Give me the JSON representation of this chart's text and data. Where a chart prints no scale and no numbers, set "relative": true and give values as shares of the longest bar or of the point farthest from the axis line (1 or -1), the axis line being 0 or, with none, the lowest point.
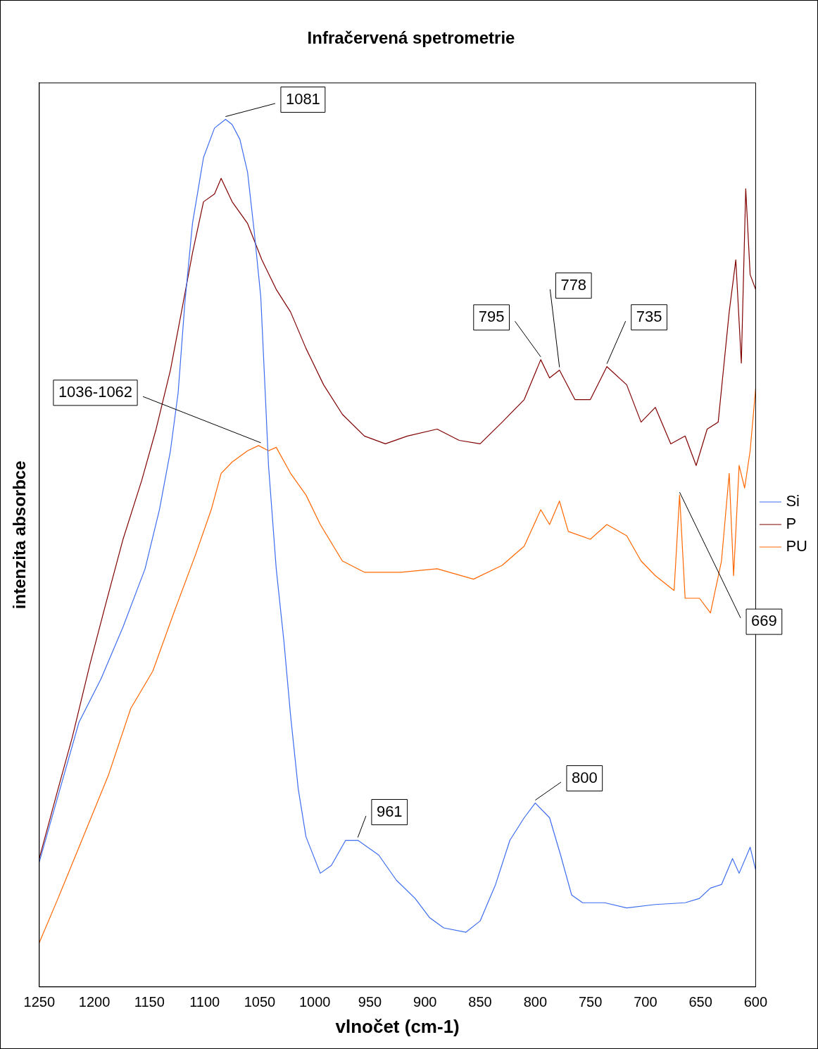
{
  "chart_data": {
    "type": "line",
    "title": "Infračervená spetrometrie",
    "xlabel": "vlnočet (cm-1)",
    "ylabel": "intenzita absorbce",
    "relative": true,
    "xlim": [
      1250,
      600
    ],
    "xticks": [
      1250,
      1200,
      1150,
      1100,
      1050,
      1000,
      950,
      900,
      850,
      800,
      750,
      700,
      650,
      600
    ],
    "grid": false,
    "legend": "right",
    "marker": "none",
    "line_style": "solid",
    "series": [
      {
        "name": "Si",
        "color": "#3d6cf0",
        "x": [
          1250,
          1233,
          1214,
          1194,
          1174,
          1154,
          1141,
          1131,
          1124,
          1118,
          1111,
          1101,
          1091,
          1081,
          1075,
          1068,
          1061,
          1055,
          1049,
          1045,
          1042,
          1035,
          1028,
          1022,
          1015,
          1008,
          995,
          985,
          972,
          961,
          942,
          926,
          909,
          896,
          883,
          863,
          850,
          836,
          823,
          810,
          800,
          787,
          777,
          767,
          757,
          737,
          717,
          691,
          664,
          651,
          641,
          631,
          621,
          615,
          605,
          600
        ],
        "values": [
          0.144,
          0.22,
          0.305,
          0.355,
          0.415,
          0.482,
          0.55,
          0.618,
          0.685,
          0.787,
          0.88,
          0.956,
          0.99,
          1.0,
          0.994,
          0.977,
          0.939,
          0.871,
          0.795,
          0.685,
          0.601,
          0.482,
          0.398,
          0.313,
          0.228,
          0.173,
          0.131,
          0.14,
          0.169,
          0.169,
          0.152,
          0.123,
          0.102,
          0.08,
          0.068,
          0.063,
          0.076,
          0.118,
          0.169,
          0.195,
          0.212,
          0.195,
          0.152,
          0.106,
          0.097,
          0.097,
          0.091,
          0.095,
          0.097,
          0.102,
          0.114,
          0.118,
          0.148,
          0.131,
          0.161,
          0.135
        ]
      },
      {
        "name": "P",
        "color": "#800000",
        "x": [
          1250,
          1233,
          1220,
          1204,
          1190,
          1174,
          1157,
          1144,
          1131,
          1121,
          1111,
          1101,
          1091,
          1085,
          1075,
          1061,
          1048,
          1035,
          1022,
          1008,
          992,
          975,
          955,
          936,
          916,
          889,
          869,
          850,
          830,
          810,
          795,
          787,
          778,
          764,
          750,
          735,
          717,
          704,
          691,
          677,
          664,
          654,
          644,
          634,
          624,
          618,
          613,
          609,
          605,
          600
        ],
        "values": [
          0.148,
          0.228,
          0.288,
          0.372,
          0.44,
          0.516,
          0.584,
          0.643,
          0.711,
          0.778,
          0.846,
          0.905,
          0.914,
          0.932,
          0.905,
          0.88,
          0.838,
          0.804,
          0.778,
          0.736,
          0.694,
          0.66,
          0.635,
          0.626,
          0.635,
          0.643,
          0.63,
          0.626,
          0.651,
          0.677,
          0.723,
          0.702,
          0.711,
          0.677,
          0.677,
          0.715,
          0.694,
          0.651,
          0.668,
          0.626,
          0.635,
          0.601,
          0.643,
          0.651,
          0.778,
          0.838,
          0.719,
          0.92,
          0.821,
          0.804
        ]
      },
      {
        "name": "PU",
        "color": "#ff6600",
        "x": [
          1250,
          1233,
          1214,
          1187,
          1167,
          1147,
          1128,
          1108,
          1094,
          1085,
          1075,
          1061,
          1051,
          1042,
          1035,
          1022,
          1008,
          995,
          975,
          955,
          922,
          889,
          856,
          830,
          810,
          795,
          787,
          778,
          770,
          750,
          735,
          717,
          704,
          691,
          674,
          669,
          664,
          651,
          641,
          631,
          624,
          620,
          615,
          610,
          605,
          600
        ],
        "values": [
          0.051,
          0.102,
          0.161,
          0.245,
          0.321,
          0.364,
          0.431,
          0.499,
          0.55,
          0.592,
          0.605,
          0.618,
          0.624,
          0.618,
          0.622,
          0.592,
          0.567,
          0.533,
          0.491,
          0.478,
          0.478,
          0.482,
          0.47,
          0.486,
          0.508,
          0.55,
          0.533,
          0.56,
          0.525,
          0.516,
          0.533,
          0.52,
          0.491,
          0.474,
          0.457,
          0.567,
          0.448,
          0.448,
          0.431,
          0.491,
          0.592,
          0.474,
          0.601,
          0.575,
          0.618,
          0.69
        ]
      }
    ],
    "annotations": [
      {
        "text": "1081",
        "x": 1081,
        "y": 1.0
      },
      {
        "text": "1036-1062",
        "x": 1049,
        "y": 0.624
      },
      {
        "text": "795",
        "x": 795,
        "y": 0.723
      },
      {
        "text": "778",
        "x": 778,
        "y": 0.711
      },
      {
        "text": "735",
        "x": 735,
        "y": 0.715
      },
      {
        "text": "669",
        "x": 669,
        "y": 0.567
      },
      {
        "text": "961",
        "x": 961,
        "y": 0.169
      },
      {
        "text": "800",
        "x": 800,
        "y": 0.212
      }
    ]
  }
}
